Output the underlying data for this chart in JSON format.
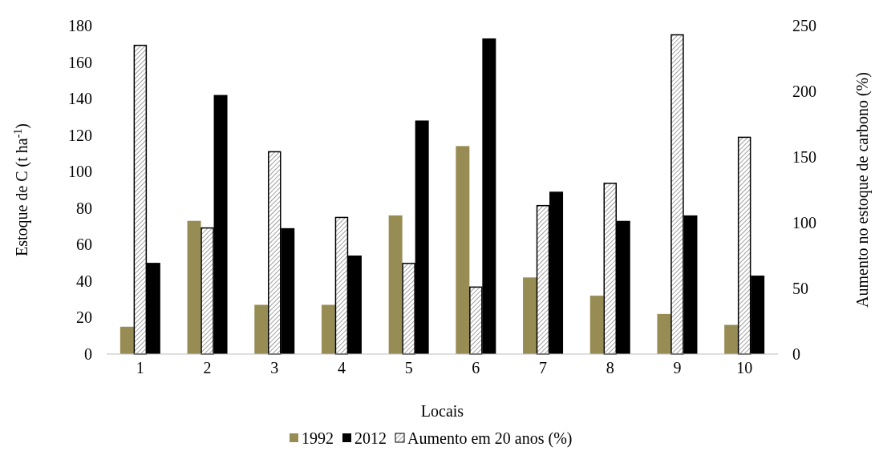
{
  "chart_data": {
    "type": "bar",
    "categories": [
      "1",
      "2",
      "3",
      "4",
      "5",
      "6",
      "7",
      "8",
      "9",
      "10"
    ],
    "series": [
      {
        "name": "1992",
        "color": "#978d54",
        "values": [
          15,
          73,
          27,
          27,
          76,
          114,
          42,
          32,
          22,
          16
        ]
      },
      {
        "name": "2012",
        "color": "#000000",
        "values": [
          50,
          142,
          69,
          54,
          128,
          173,
          89,
          73,
          76,
          43
        ]
      },
      {
        "name": "Aumento em 20 anos (%)",
        "color": "#000000",
        "axis": "y2",
        "values": [
          235,
          96,
          154,
          104,
          69,
          51,
          113,
          130,
          243,
          165
        ]
      }
    ],
    "xlabel": "Locais",
    "ylabel": "Estoque de C (t ha$^{-1}$)",
    "y2label": "Aumento no estoque de carbono (%)",
    "ylim": [
      0,
      180
    ],
    "yticks": [
      0,
      20,
      40,
      60,
      80,
      100,
      120,
      140,
      160,
      180
    ],
    "y2lim": [
      0,
      250
    ],
    "y2ticks": [
      0,
      50,
      100,
      150,
      200,
      250
    ],
    "grid": false,
    "legend": "bottom"
  }
}
